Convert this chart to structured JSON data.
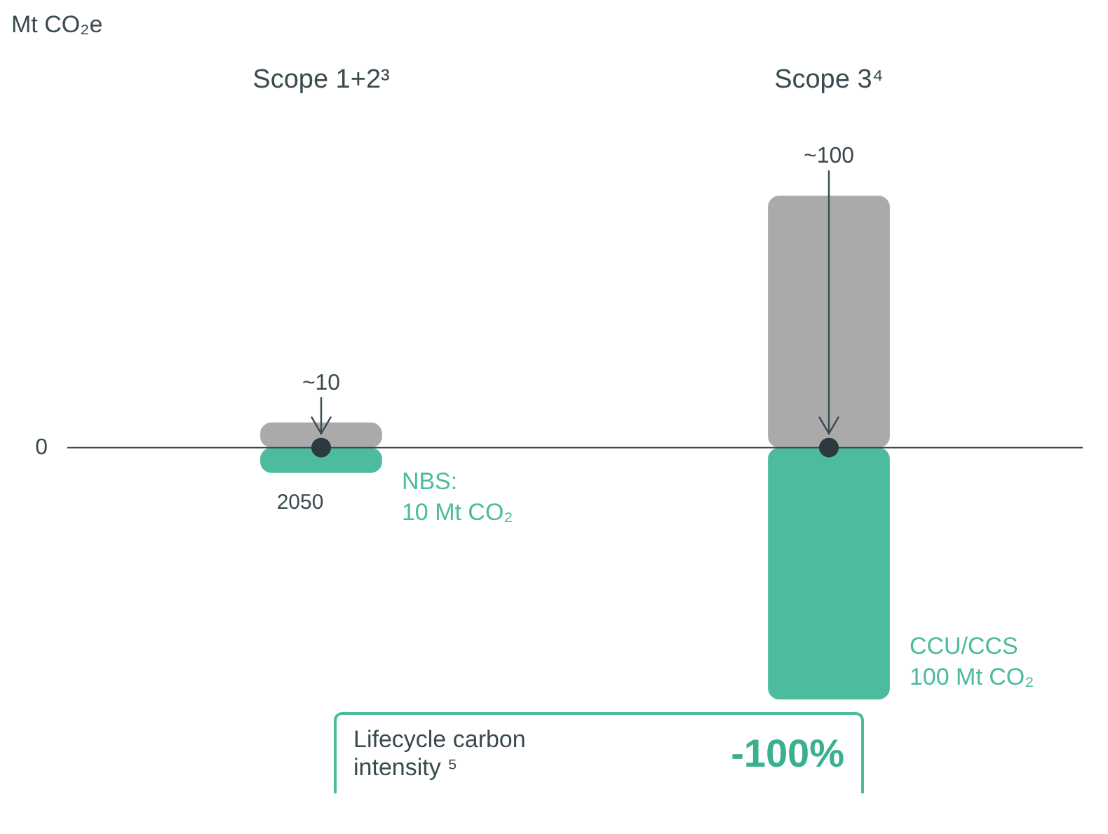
{
  "chart_data": {
    "type": "bar",
    "ylabel": "Mt CO₂e",
    "categories": [
      "Scope 1+2³",
      "Scope 3⁴"
    ],
    "stacked": true,
    "series": [
      {
        "color": "#a9aaa9",
        "values": [
          10,
          100
        ],
        "value_labels": [
          "~10",
          "~100"
        ]
      },
      {
        "color": "#4dbb9e",
        "values": [
          -10,
          -100
        ]
      }
    ],
    "annotations": [
      "NBS:\n10 Mt CO₂",
      "CCU/CCS\n100 Mt CO₂",
      "0",
      "2050",
      "Lifecycle carbon intensity ⁵",
      "-100%"
    ]
  }
}
